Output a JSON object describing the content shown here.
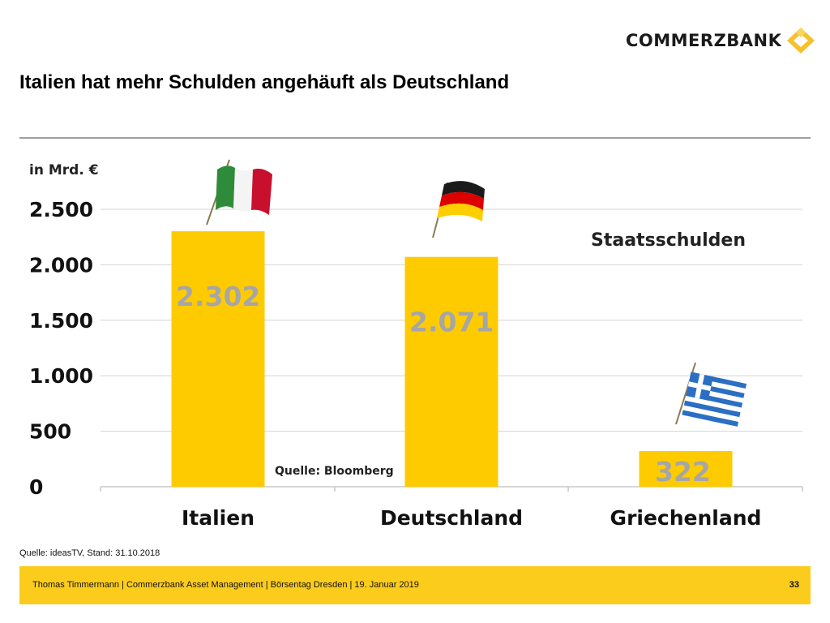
{
  "logo": {
    "text": "COMMERZBANK",
    "mark_color": "#f6c12b"
  },
  "title": "Italien hat mehr Schulden angehäuft als Deutschland",
  "chart_data": {
    "type": "bar",
    "unit_label": "in Mrd. €",
    "series_label": "Staatsschulden",
    "source_inset": "Quelle: Bloomberg",
    "categories": [
      "Italien",
      "Deutschland",
      "Griechenland"
    ],
    "values": [
      2302,
      2071,
      322
    ],
    "value_labels": [
      "2.302",
      "2.071",
      "322"
    ],
    "yticks": [
      0,
      500,
      1000,
      1500,
      2000,
      2500
    ],
    "ytick_labels": [
      "0",
      "500",
      "1.000",
      "1.500",
      "2.000",
      "2.500"
    ],
    "ylim": [
      0,
      2500
    ],
    "grid": true,
    "bar_color": "#fecb00",
    "value_label_color": "#a6a6a6",
    "flags": [
      "italy-flag",
      "germany-flag",
      "greece-flag"
    ]
  },
  "source_note": "Quelle: ideasTV, Stand: 31.10.2018",
  "footer": {
    "text": "Thomas Timmermann | Commerzbank Asset Management | Börsentag Dresden | 19. Januar 2019",
    "page": "33",
    "color": "#fccc1d"
  }
}
